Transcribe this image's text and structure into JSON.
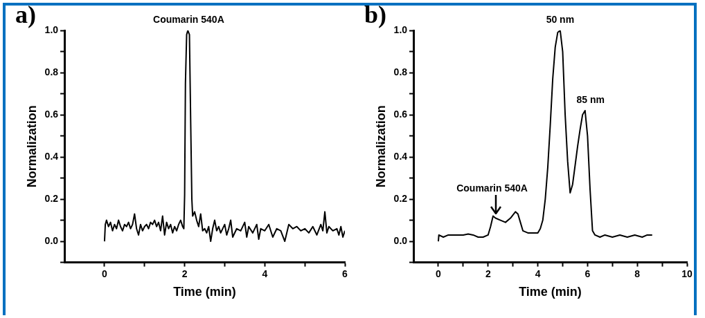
{
  "chart_data": [
    {
      "type": "line",
      "xlabel": "Time (min)",
      "ylabel": "Normalization",
      "annotations": [
        "a)",
        {
          "text": "Coumarin 540A",
          "x": 2.1,
          "y": 1.0
        }
      ],
      "xlim": [
        -1,
        6
      ],
      "ylim": [
        -0.1,
        1.0
      ],
      "xticks": [
        0,
        {
          "value": 1,
          "label": null
        },
        2,
        {
          "value": 3,
          "label": null
        },
        4,
        {
          "value": 5,
          "label": null
        },
        6
      ],
      "yticks": [
        {
          "value": -0.1,
          "label": null
        },
        {
          "value": 0,
          "label": "0.0"
        },
        {
          "value": 0.1,
          "label": null
        },
        0.2,
        {
          "value": 0.3,
          "label": null
        },
        0.4,
        {
          "value": 0.5,
          "label": null
        },
        0.6,
        {
          "value": 0.7,
          "label": null
        },
        0.8,
        {
          "value": 0.9,
          "label": null
        },
        {
          "value": 1.0,
          "label": "1.0"
        }
      ],
      "grid": false,
      "legend": false,
      "marker": "none",
      "line_style": "solid",
      "series": [
        {
          "color": "#000000",
          "x": [
            0,
            0.02,
            0.05,
            0.1,
            0.15,
            0.2,
            0.25,
            0.3,
            0.35,
            0.4,
            0.45,
            0.5,
            0.55,
            0.6,
            0.65,
            0.7,
            0.75,
            0.8,
            0.85,
            0.9,
            0.95,
            1.0,
            1.05,
            1.1,
            1.15,
            1.2,
            1.25,
            1.3,
            1.35,
            1.4,
            1.45,
            1.5,
            1.55,
            1.6,
            1.65,
            1.7,
            1.75,
            1.8,
            1.85,
            1.9,
            1.95,
            1.98,
            2.0,
            2.02,
            2.05,
            2.08,
            2.1,
            2.12,
            2.15,
            2.18,
            2.2,
            2.25,
            2.3,
            2.35,
            2.4,
            2.45,
            2.5,
            2.55,
            2.6,
            2.65,
            2.7,
            2.75,
            2.8,
            2.85,
            2.9,
            3.0,
            3.05,
            3.1,
            3.15,
            3.2,
            3.3,
            3.4,
            3.5,
            3.55,
            3.6,
            3.7,
            3.8,
            3.85,
            3.9,
            4.0,
            4.1,
            4.2,
            4.3,
            4.4,
            4.5,
            4.6,
            4.7,
            4.8,
            4.9,
            5.0,
            5.1,
            5.2,
            5.3,
            5.4,
            5.45,
            5.5,
            5.55,
            5.6,
            5.7,
            5.8,
            5.85,
            5.9,
            5.95,
            6.0
          ],
          "values": [
            0.0,
            0.08,
            0.1,
            0.07,
            0.09,
            0.05,
            0.08,
            0.06,
            0.1,
            0.07,
            0.05,
            0.08,
            0.07,
            0.09,
            0.06,
            0.08,
            0.13,
            0.06,
            0.03,
            0.08,
            0.05,
            0.07,
            0.08,
            0.06,
            0.09,
            0.08,
            0.1,
            0.07,
            0.09,
            0.05,
            0.12,
            0.03,
            0.09,
            0.06,
            0.08,
            0.04,
            0.07,
            0.05,
            0.08,
            0.1,
            0.07,
            0.06,
            0.22,
            0.75,
            0.98,
            1.0,
            0.99,
            0.98,
            0.58,
            0.2,
            0.12,
            0.14,
            0.1,
            0.07,
            0.13,
            0.05,
            0.06,
            0.04,
            0.07,
            0.0,
            0.06,
            0.1,
            0.05,
            0.07,
            0.04,
            0.08,
            0.03,
            0.06,
            0.1,
            0.02,
            0.06,
            0.05,
            0.09,
            0.02,
            0.07,
            0.04,
            0.08,
            0.01,
            0.06,
            0.05,
            0.08,
            0.02,
            0.06,
            0.05,
            0.0,
            0.08,
            0.06,
            0.07,
            0.05,
            0.06,
            0.04,
            0.07,
            0.03,
            0.08,
            0.05,
            0.14,
            0.04,
            0.07,
            0.05,
            0.06,
            0.03,
            0.07,
            0.02,
            0.05
          ]
        }
      ]
    },
    {
      "type": "line",
      "xlabel": "Time (min)",
      "ylabel": "Normalization",
      "annotations": [
        "b)",
        {
          "text": "50 nm",
          "x": 4.9,
          "y": 1.0
        },
        {
          "text": "85 nm",
          "x": 5.9,
          "y": 0.62
        },
        {
          "text": "Coumarin 540A",
          "x": 2.3,
          "y": 0.12
        }
      ],
      "xlim": [
        -1,
        10
      ],
      "ylim": [
        -0.1,
        1.0
      ],
      "xticks": [
        0,
        {
          "value": 1,
          "label": null
        },
        2,
        {
          "value": 3,
          "label": null
        },
        4,
        {
          "value": 5,
          "label": null
        },
        6,
        {
          "value": 7,
          "label": null
        },
        8,
        {
          "value": 9,
          "label": null
        },
        10
      ],
      "yticks": [
        {
          "value": -0.1,
          "label": null
        },
        {
          "value": 0,
          "label": "0.0"
        },
        {
          "value": 0.1,
          "label": null
        },
        0.2,
        {
          "value": 0.3,
          "label": null
        },
        0.4,
        {
          "value": 0.5,
          "label": null
        },
        0.6,
        {
          "value": 0.7,
          "label": null
        },
        0.8,
        {
          "value": 0.9,
          "label": null
        },
        {
          "value": 1.0,
          "label": "1.0"
        }
      ],
      "grid": false,
      "legend": false,
      "marker": "none",
      "line_style": "solid",
      "series": [
        {
          "color": "#000000",
          "x": [
            0,
            0.02,
            0.2,
            0.4,
            0.6,
            0.8,
            1.0,
            1.2,
            1.4,
            1.6,
            1.8,
            2.0,
            2.1,
            2.2,
            2.3,
            2.5,
            2.7,
            2.9,
            3.1,
            3.2,
            3.3,
            3.4,
            3.6,
            3.8,
            4.0,
            4.1,
            4.2,
            4.3,
            4.4,
            4.5,
            4.6,
            4.7,
            4.8,
            4.9,
            5.0,
            5.1,
            5.2,
            5.3,
            5.4,
            5.5,
            5.6,
            5.7,
            5.8,
            5.9,
            6.0,
            6.1,
            6.2,
            6.3,
            6.5,
            6.7,
            7.0,
            7.3,
            7.6,
            7.9,
            8.2,
            8.4,
            8.6
          ],
          "values": [
            0.0,
            0.03,
            0.02,
            0.03,
            0.03,
            0.03,
            0.03,
            0.035,
            0.03,
            0.02,
            0.02,
            0.03,
            0.07,
            0.12,
            0.11,
            0.1,
            0.09,
            0.11,
            0.14,
            0.13,
            0.09,
            0.05,
            0.04,
            0.04,
            0.04,
            0.06,
            0.1,
            0.2,
            0.35,
            0.55,
            0.77,
            0.92,
            0.99,
            1.0,
            0.9,
            0.6,
            0.38,
            0.23,
            0.27,
            0.36,
            0.45,
            0.53,
            0.6,
            0.62,
            0.5,
            0.25,
            0.05,
            0.03,
            0.02,
            0.03,
            0.02,
            0.03,
            0.02,
            0.03,
            0.02,
            0.03,
            0.03
          ]
        }
      ]
    }
  ]
}
